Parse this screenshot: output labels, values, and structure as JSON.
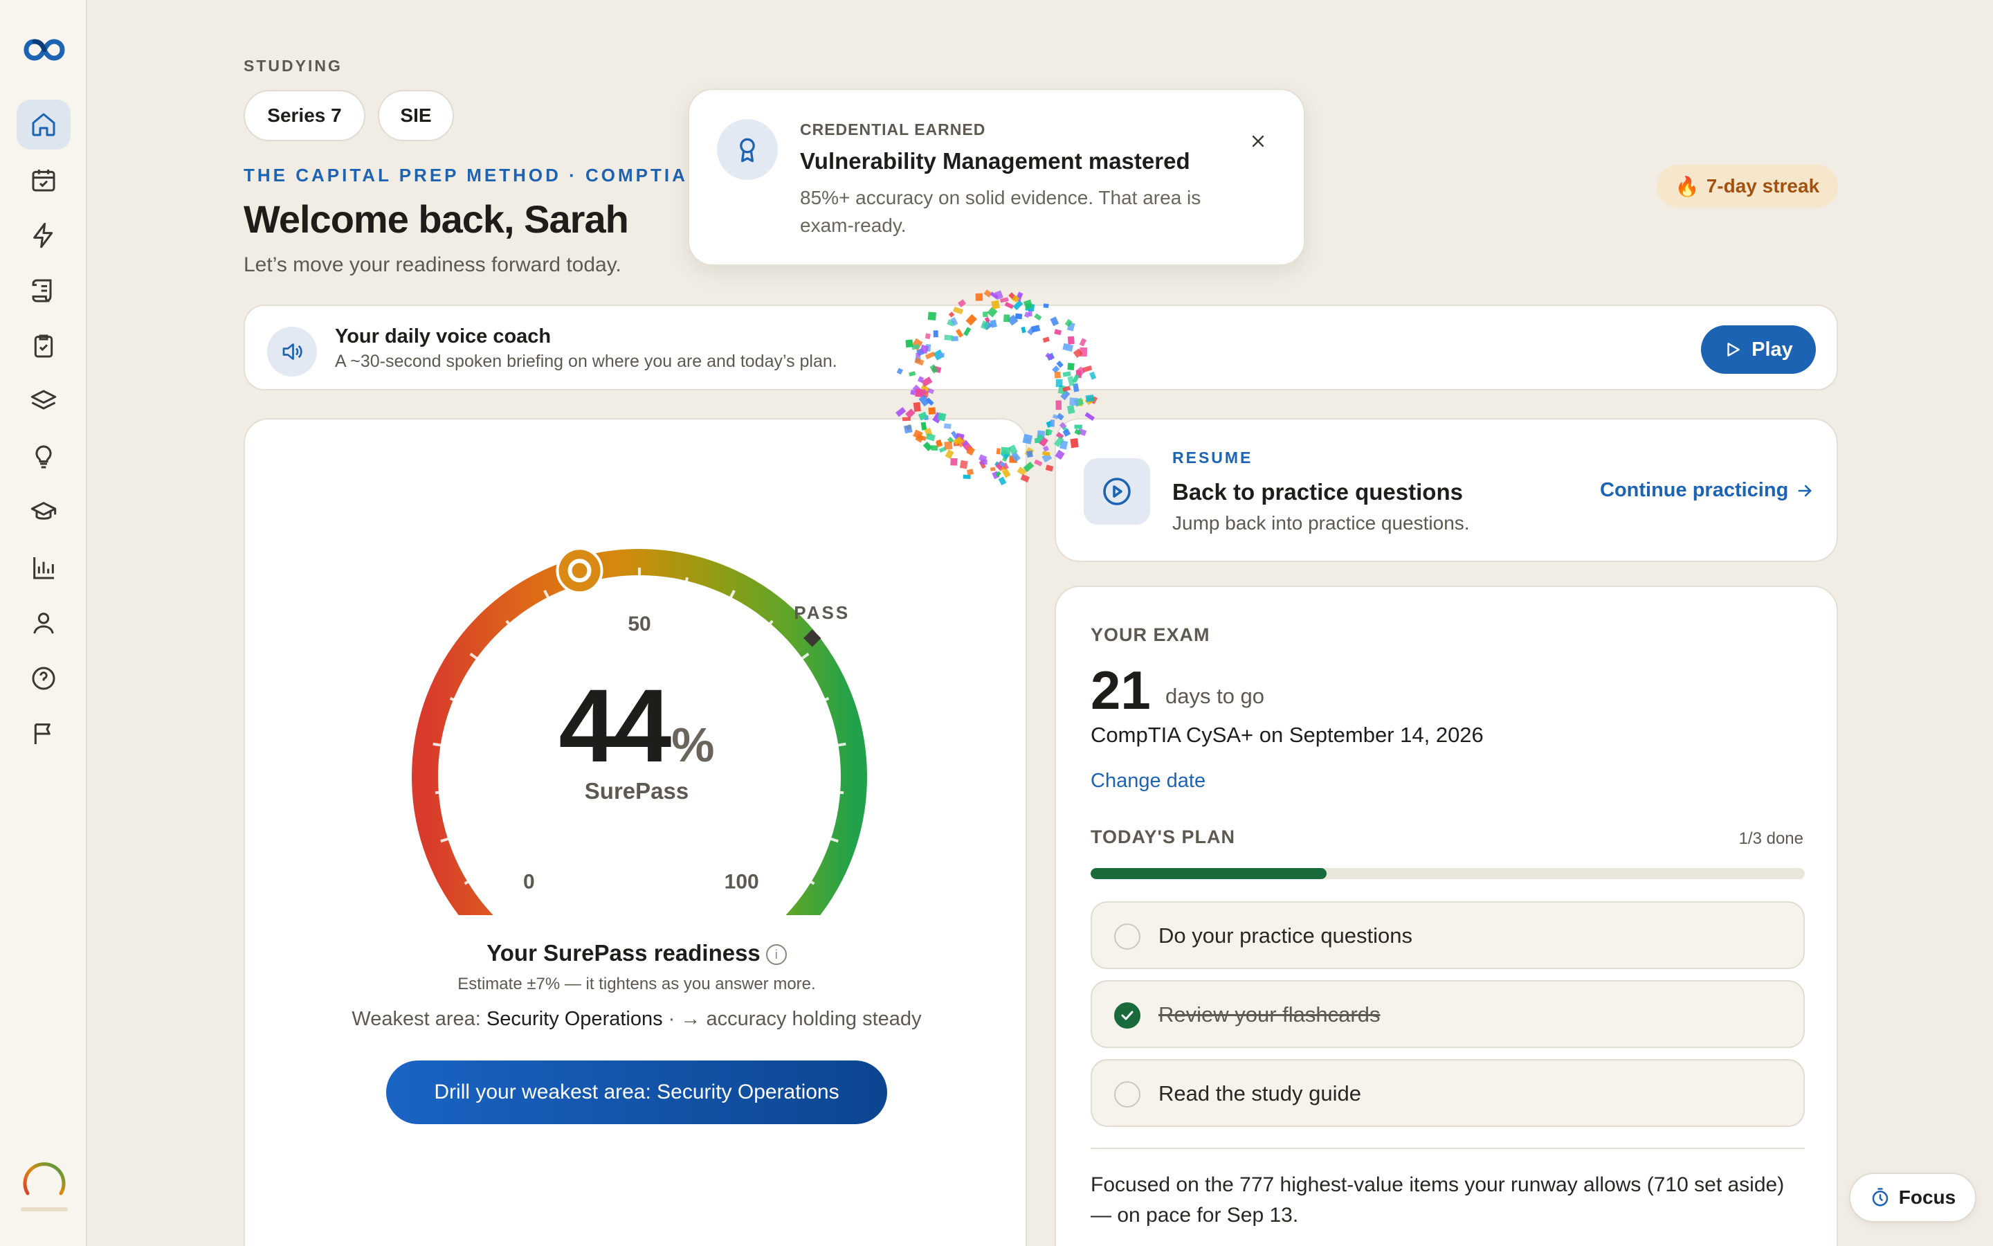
{
  "sidebar": {
    "items": [
      {
        "icon": "home-icon",
        "active": true
      },
      {
        "icon": "calendar-check-icon"
      },
      {
        "icon": "lightning-icon"
      },
      {
        "icon": "scroll-icon"
      },
      {
        "icon": "clipboard-check-icon"
      },
      {
        "icon": "layers-icon"
      },
      {
        "icon": "lightbulb-icon"
      },
      {
        "icon": "graduation-cap-icon"
      },
      {
        "icon": "bar-chart-icon"
      },
      {
        "icon": "user-icon"
      },
      {
        "icon": "help-circle-icon"
      },
      {
        "icon": "flag-icon"
      }
    ]
  },
  "header": {
    "studying_label": "STUDYING",
    "pills": [
      "Series 7",
      "SIE"
    ],
    "eyebrow": "THE CAPITAL PREP METHOD · COMPTIA CYS",
    "welcome": "Welcome back, Sarah",
    "subtitle": "Let’s move your readiness forward today.",
    "streak": "7-day streak"
  },
  "toast": {
    "eyebrow": "CREDENTIAL EARNED",
    "title": "Vulnerability Management mastered",
    "body": "85%+ accuracy on solid evidence. That area is exam-ready."
  },
  "coach": {
    "title": "Your daily voice coach",
    "subtitle": "A ~30-second spoken briefing on where you are and today’s plan.",
    "play_label": "Play"
  },
  "readiness": {
    "value": 44,
    "unit": "%",
    "pass_mark": 69,
    "label": "SurePass",
    "tick_min": "0",
    "tick_mid": "50",
    "tick_max": "100",
    "pass_label": "PASS",
    "title": "Your SurePass readiness",
    "info": "i",
    "estimate": "Estimate ±7% — it tightens as you answer more.",
    "weakest_prefix": "Weakest area: ",
    "weakest_area": "Security Operations",
    "weakest_suffix": " · → accuracy holding steady",
    "cta": "Drill your weakest area: Security Operations"
  },
  "resume": {
    "eyebrow": "RESUME",
    "title": "Back to practice questions",
    "subtitle": "Jump back into practice questions.",
    "link": "Continue practicing"
  },
  "exam": {
    "eyebrow": "YOUR EXAM",
    "days": "21",
    "days_label": "days to go",
    "date_line": "CompTIA CySA+ on September 14, 2026",
    "change_date": "Change date",
    "plan_label": "TODAY'S PLAN",
    "plan_count": "1/3 done",
    "plan_progress": 0.33,
    "tasks": [
      {
        "label": "Do your practice questions",
        "done": false
      },
      {
        "label": "Review your flashcards",
        "done": true
      },
      {
        "label": "Read the study guide",
        "done": false
      }
    ],
    "note": "Focused on the 777 highest-value items your runway allows (710 set aside) — on pace for Sep 13."
  },
  "focus": {
    "label": "Focus"
  },
  "colors": {
    "accent": "#1d63b3",
    "success": "#1a6b3c",
    "background": "#f1ede5",
    "streak": "#a1520f"
  }
}
